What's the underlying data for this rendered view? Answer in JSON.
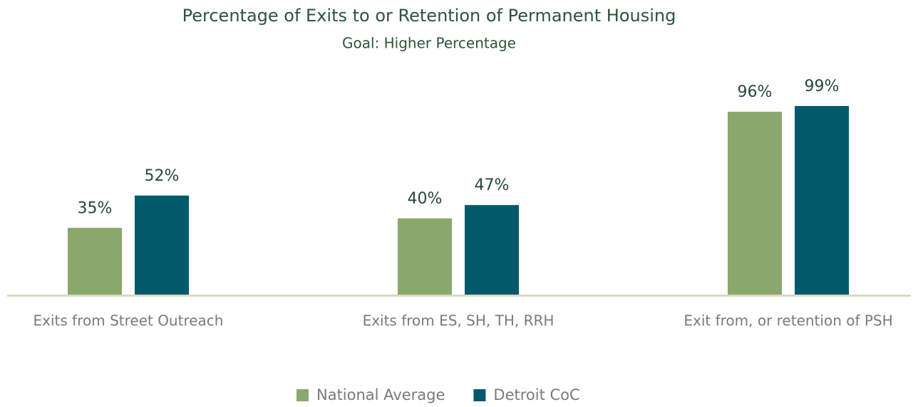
{
  "chart_data": {
    "type": "bar",
    "title": "Percentage of Exits to or Retention of Permanent Housing",
    "subtitle": "Goal: Higher Percentage",
    "categories": [
      "Exits from Street Outreach",
      "Exits from ES, SH, TH, RRH",
      "Exit from, or retention of PSH"
    ],
    "series": [
      {
        "name": "National Average",
        "color": "#8aa76c",
        "values": [
          35,
          40,
          96
        ],
        "value_labels": [
          "35%",
          "40%",
          "96%"
        ]
      },
      {
        "name": "Detroit CoC",
        "color": "#005a6a",
        "values": [
          52,
          47,
          99
        ],
        "value_labels": [
          "52%",
          "47%",
          "99%"
        ]
      }
    ],
    "legend": "bottom"
  }
}
